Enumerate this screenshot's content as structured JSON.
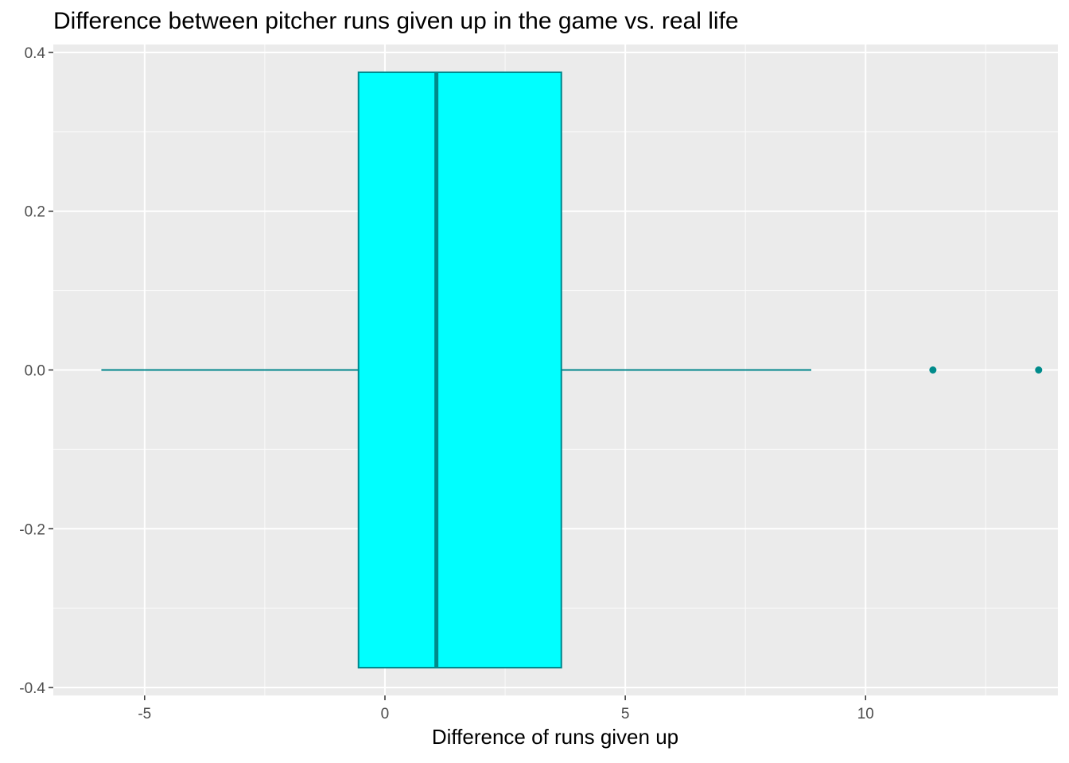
{
  "chart_data": {
    "type": "boxplot",
    "title": "Difference between pitcher runs given up in the game vs. real life",
    "xlabel": "Difference of runs given up",
    "ylabel": "",
    "xlim": [
      -6.9,
      14.0
    ],
    "ylim": [
      -0.41,
      0.41
    ],
    "x_ticks": [
      -5,
      0,
      5,
      10
    ],
    "x_tick_labels": [
      "-5",
      "0",
      "5",
      "10"
    ],
    "x_minor_ticks": [
      -2.5,
      2.5,
      7.5,
      12.5
    ],
    "y_ticks": [
      -0.4,
      -0.2,
      0.0,
      0.2,
      0.4
    ],
    "y_tick_labels": [
      "-0.4",
      "-0.2",
      "0.0",
      "0.2",
      "0.4"
    ],
    "y_minor_ticks": [
      -0.3,
      -0.1,
      0.1,
      0.3
    ],
    "box": {
      "y_center": 0.0,
      "y_half_width": 0.375,
      "whisker_low": -5.9,
      "q1": -0.55,
      "median": 1.07,
      "q3": 3.67,
      "whisker_high": 8.87
    },
    "outliers": [
      11.4,
      13.6
    ],
    "grid": true,
    "colors": {
      "panel_background": "#ebebeb",
      "grid_major": "#ffffff",
      "box_fill": "#00ffff",
      "box_outline": "#00868b",
      "median_line": "#008b8b",
      "outlier": "#008b8b",
      "tick_label": "#4d4d4d",
      "tick_mark": "#333333"
    }
  }
}
